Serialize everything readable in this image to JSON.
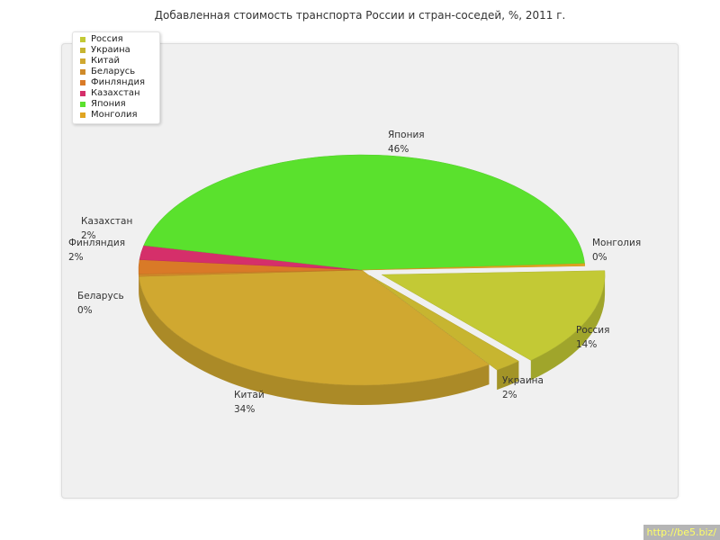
{
  "chart_data": {
    "type": "pie",
    "title": "Добавленная стоимость транспорта России и стран-соседей, %, 2011 г.",
    "slices": [
      {
        "label": "Россия",
        "value": 14,
        "value_label": "14%",
        "color": "#c3c935"
      },
      {
        "label": "Украина",
        "value": 2,
        "value_label": "2%",
        "color": "#c7b530"
      },
      {
        "label": "Китай",
        "value": 34,
        "value_label": "34%",
        "color": "#d0a830"
      },
      {
        "label": "Беларусь",
        "value": 0,
        "value_label": "0%",
        "color": "#cf8a2a"
      },
      {
        "label": "Финляндия",
        "value": 2,
        "value_label": "2%",
        "color": "#d97a27"
      },
      {
        "label": "Казахстан",
        "value": 2,
        "value_label": "2%",
        "color": "#d52f6a"
      },
      {
        "label": "Япония",
        "value": 46,
        "value_label": "46%",
        "color": "#5ae12d"
      },
      {
        "label": "Монголия",
        "value": 0,
        "value_label": "0%",
        "color": "#e0a521"
      }
    ],
    "legend": "top-left"
  },
  "watermark": "http://be5.biz/"
}
